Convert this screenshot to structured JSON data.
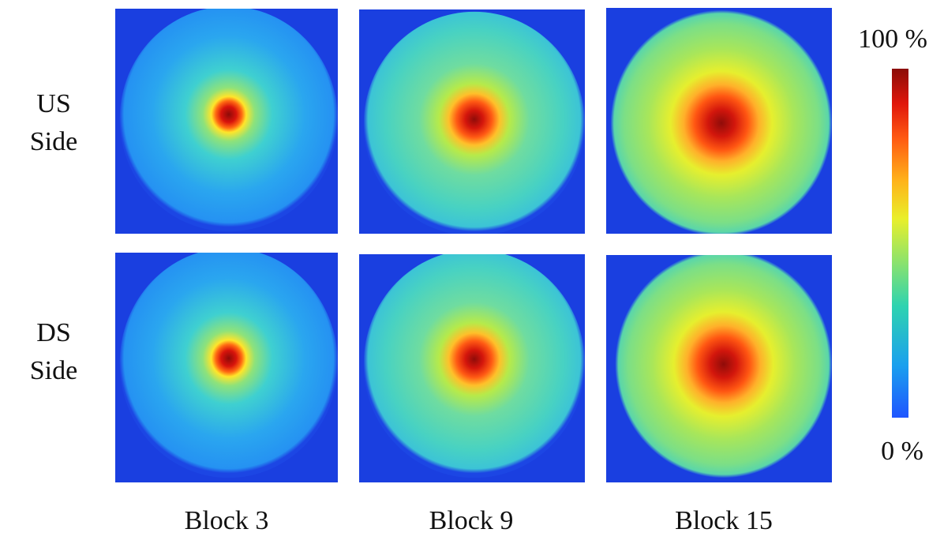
{
  "rows": [
    {
      "line1": "US",
      "line2": "Side"
    },
    {
      "line1": "DS",
      "line2": "Side"
    }
  ],
  "columns": [
    "Block 3",
    "Block 9",
    "Block 15"
  ],
  "colorbar": {
    "max_label": "100 %",
    "min_label": "0 %",
    "colormap": "jet"
  },
  "colors": {
    "background": "#1a3fe0",
    "outer_disc": "#2ba7f0",
    "mid_disc": "#6fdca0",
    "warm_ring": "#ffd02a",
    "hot": "#f24a10",
    "peak": "#9a0c0a"
  },
  "panels": [
    {
      "row": "US Side",
      "block": "Block 3",
      "relative_intensity_spread": "narrow"
    },
    {
      "row": "US Side",
      "block": "Block 9",
      "relative_intensity_spread": "medium"
    },
    {
      "row": "US Side",
      "block": "Block 15",
      "relative_intensity_spread": "wide"
    },
    {
      "row": "DS Side",
      "block": "Block 3",
      "relative_intensity_spread": "narrow"
    },
    {
      "row": "DS Side",
      "block": "Block 9",
      "relative_intensity_spread": "medium"
    },
    {
      "row": "DS Side",
      "block": "Block 15",
      "relative_intensity_spread": "wide"
    }
  ]
}
